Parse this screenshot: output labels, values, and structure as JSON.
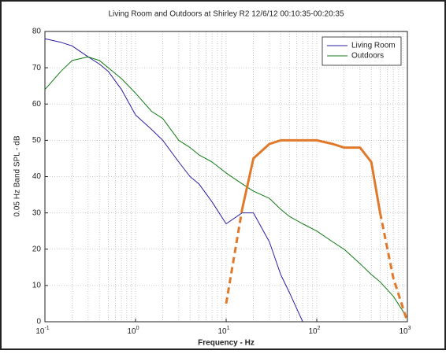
{
  "chart_data": {
    "type": "line",
    "title": "Living Room and Outdoors at Shirley R2 12/6/12 00:10:35-00:20:35",
    "xlabel": "Frequency - Hz",
    "ylabel": "0.05 Hz Band SPL - dB",
    "x": [
      0.1,
      0.15,
      0.2,
      0.3,
      0.4,
      0.5,
      0.7,
      1,
      1.5,
      2,
      3,
      4,
      5,
      7,
      10,
      15,
      20,
      30,
      40,
      50,
      70,
      100,
      150,
      200,
      300,
      400,
      500,
      700,
      1000
    ],
    "series": [
      {
        "name": "Living Room",
        "color": "#2a1fa0",
        "width": 1,
        "values": [
          78,
          77,
          76,
          73,
          71,
          69,
          64,
          57,
          53,
          50,
          44,
          40,
          38,
          33,
          27,
          30,
          30,
          22,
          13,
          8,
          0,
          null,
          null,
          null,
          null,
          null,
          null,
          null,
          null
        ]
      },
      {
        "name": "Outdoors",
        "color": "#0f7a12",
        "width": 1,
        "values": [
          64,
          69,
          72,
          73,
          72,
          70,
          67,
          63,
          58,
          56,
          50,
          48,
          46,
          44,
          41,
          38,
          36,
          34,
          31,
          29,
          27,
          25,
          22,
          20,
          16,
          13,
          11,
          7,
          1
        ]
      },
      {
        "color": "#e07a2a",
        "width": 3,
        "values": [
          null,
          null,
          null,
          null,
          null,
          null,
          null,
          null,
          null,
          null,
          null,
          null,
          null,
          null,
          null,
          31,
          45,
          49,
          50,
          50,
          50,
          50,
          49,
          48,
          48,
          44,
          30,
          null,
          null
        ]
      },
      {
        "color": "#e07a2a",
        "width": 3,
        "dashed": true,
        "values": [
          null,
          null,
          null,
          null,
          null,
          null,
          null,
          null,
          null,
          null,
          null,
          null,
          null,
          null,
          5,
          31,
          null,
          null,
          null,
          null,
          null,
          null,
          null,
          null,
          null,
          null,
          30,
          12,
          0
        ]
      }
    ],
    "xlim": [
      0.1,
      1000
    ],
    "ylim": [
      0,
      80
    ],
    "xscale": "log",
    "xticks": [
      {
        "value": 0.1,
        "label": "10",
        "exponent": "-1"
      },
      {
        "value": 1,
        "label": "10",
        "exponent": "0"
      },
      {
        "value": 10,
        "label": "10",
        "exponent": "1"
      },
      {
        "value": 100,
        "label": "10",
        "exponent": "2"
      },
      {
        "value": 1000,
        "label": "10",
        "exponent": "3"
      }
    ],
    "yticks": [
      0,
      10,
      20,
      30,
      40,
      50,
      60,
      70,
      80
    ],
    "grid": true,
    "legend": "upper right"
  }
}
